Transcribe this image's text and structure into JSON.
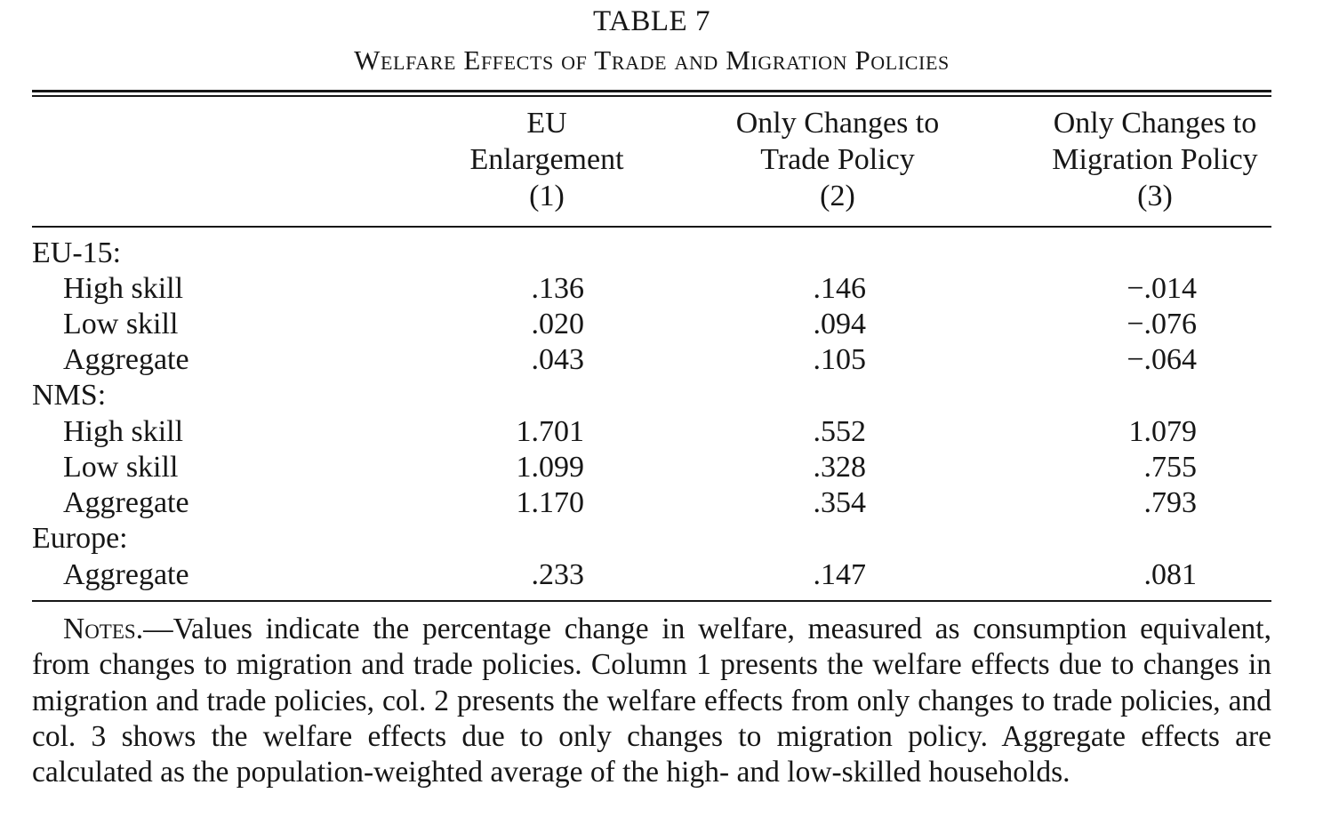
{
  "table": {
    "number": "TABLE 7",
    "title": "Welfare Effects of Trade and Migration Policies",
    "columns": [
      {
        "lines": [
          "EU",
          "Enlargement",
          "(1)"
        ]
      },
      {
        "lines": [
          "Only Changes to",
          "Trade Policy",
          "(2)"
        ]
      },
      {
        "lines": [
          "Only Changes to",
          "Migration Policy",
          "(3)"
        ]
      }
    ],
    "groups": [
      {
        "label": "EU-15:",
        "rows": [
          {
            "label": "High skill",
            "values": [
              ".136",
              ".146",
              "−.014"
            ]
          },
          {
            "label": "Low skill",
            "values": [
              ".020",
              ".094",
              "−.076"
            ]
          },
          {
            "label": "Aggregate",
            "values": [
              ".043",
              ".105",
              "−.064"
            ]
          }
        ]
      },
      {
        "label": "NMS:",
        "rows": [
          {
            "label": "High skill",
            "values": [
              "1.701",
              ".552",
              "1.079"
            ]
          },
          {
            "label": "Low skill",
            "values": [
              "1.099",
              ".328",
              ".755"
            ]
          },
          {
            "label": "Aggregate",
            "values": [
              "1.170",
              ".354",
              ".793"
            ]
          }
        ]
      },
      {
        "label": "Europe:",
        "rows": [
          {
            "label": "Aggregate",
            "values": [
              ".233",
              ".147",
              ".081"
            ]
          }
        ]
      }
    ],
    "notes_label": "Notes.",
    "notes_text": "—Values indicate the percentage change in welfare, measured as consump­tion equivalent, from changes to migration and trade policies. Column 1 presents the welfare effects due to changes in migration and trade policies, col. 2 presents the welfare effects from only changes to trade policies, and col. 3 shows the welfare effects due to only changes to mi­gration policy. Aggregate effects are calculated as the population-weighted average of the high- and low-skilled households."
  }
}
